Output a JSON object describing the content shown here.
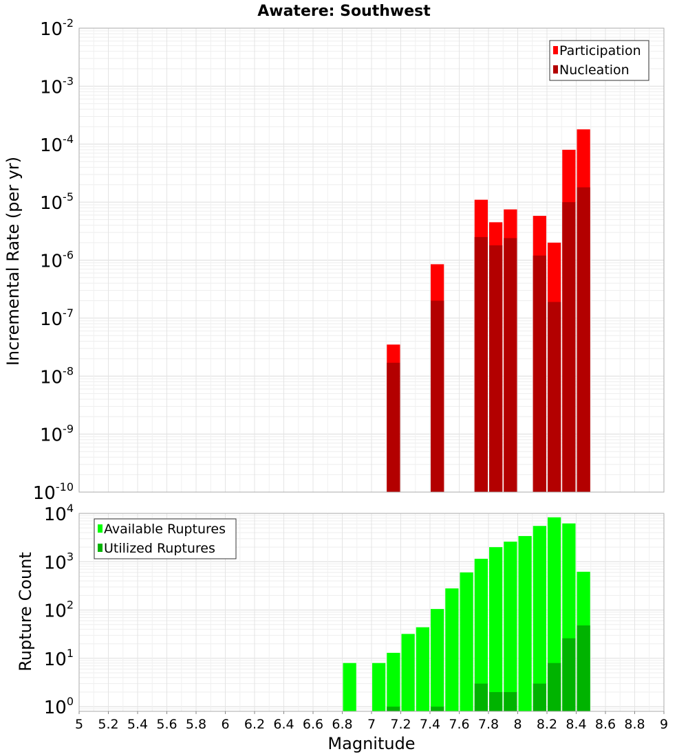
{
  "chart_data": [
    {
      "type": "bar",
      "title": "Awatere: Southwest",
      "xlabel": "",
      "ylabel": "Incremental Rate (per yr)",
      "yscale": "log",
      "ylim": [
        1e-10,
        0.01
      ],
      "xlim": [
        5,
        9
      ],
      "bar_width": 0.1,
      "grid": true,
      "legend_position": "top-right",
      "series": [
        {
          "name": "Participation",
          "color": "#ff0000",
          "x": [
            7.15,
            7.45,
            7.75,
            7.85,
            7.95,
            8.15,
            8.25,
            8.35,
            8.45
          ],
          "values": [
            3.5e-08,
            8.5e-07,
            1.1e-05,
            4.5e-06,
            7.5e-06,
            5.8e-06,
            2e-06,
            8e-05,
            0.00018
          ]
        },
        {
          "name": "Nucleation",
          "color": "#b30000",
          "x": [
            7.15,
            7.45,
            7.75,
            7.85,
            7.95,
            8.15,
            8.25,
            8.35,
            8.45
          ],
          "values": [
            1.7e-08,
            2e-07,
            2.5e-06,
            1.8e-06,
            2.4e-06,
            1.2e-06,
            1.9e-07,
            1e-05,
            1.8e-05
          ]
        }
      ],
      "y_ticks": [
        {
          "base": "10",
          "exp": "-10"
        },
        {
          "base": "10",
          "exp": "-9"
        },
        {
          "base": "10",
          "exp": "-8"
        },
        {
          "base": "10",
          "exp": "-7"
        },
        {
          "base": "10",
          "exp": "-6"
        },
        {
          "base": "10",
          "exp": "-5"
        },
        {
          "base": "10",
          "exp": "-4"
        },
        {
          "base": "10",
          "exp": "-3"
        },
        {
          "base": "10",
          "exp": "-2"
        }
      ]
    },
    {
      "type": "bar",
      "title": "",
      "xlabel": "Magnitude",
      "ylabel": "Rupture Count",
      "yscale": "log",
      "ylim": [
        0.8,
        10000
      ],
      "xlim": [
        5,
        9
      ],
      "bar_width": 0.1,
      "grid": true,
      "legend_position": "top-left",
      "series": [
        {
          "name": "Available Ruptures",
          "color": "#00ff00",
          "x": [
            6.85,
            7.05,
            7.15,
            7.25,
            7.35,
            7.45,
            7.55,
            7.65,
            7.75,
            7.85,
            7.95,
            8.05,
            8.15,
            8.25,
            8.35,
            8.45
          ],
          "values": [
            8,
            8,
            13,
            32,
            44,
            105,
            280,
            600,
            1150,
            2000,
            2600,
            3400,
            5500,
            8300,
            6200,
            620
          ]
        },
        {
          "name": "Utilized Ruptures",
          "color": "#00b300",
          "x": [
            7.15,
            7.45,
            7.75,
            7.85,
            7.95,
            8.15,
            8.25,
            8.35,
            8.45
          ],
          "values": [
            1,
            1,
            3,
            2,
            2,
            3,
            8,
            26,
            48
          ]
        }
      ],
      "y_ticks": [
        {
          "base": "10",
          "exp": "0"
        },
        {
          "base": "10",
          "exp": "1"
        },
        {
          "base": "10",
          "exp": "2"
        },
        {
          "base": "10",
          "exp": "3"
        },
        {
          "base": "10",
          "exp": "4"
        }
      ],
      "x_ticks": [
        "5",
        "5.2",
        "5.4",
        "5.6",
        "5.8",
        "6",
        "6.2",
        "6.4",
        "6.6",
        "6.8",
        "7",
        "7.2",
        "7.4",
        "7.6",
        "7.8",
        "8",
        "8.2",
        "8.4",
        "8.6",
        "8.8",
        "9"
      ]
    }
  ]
}
